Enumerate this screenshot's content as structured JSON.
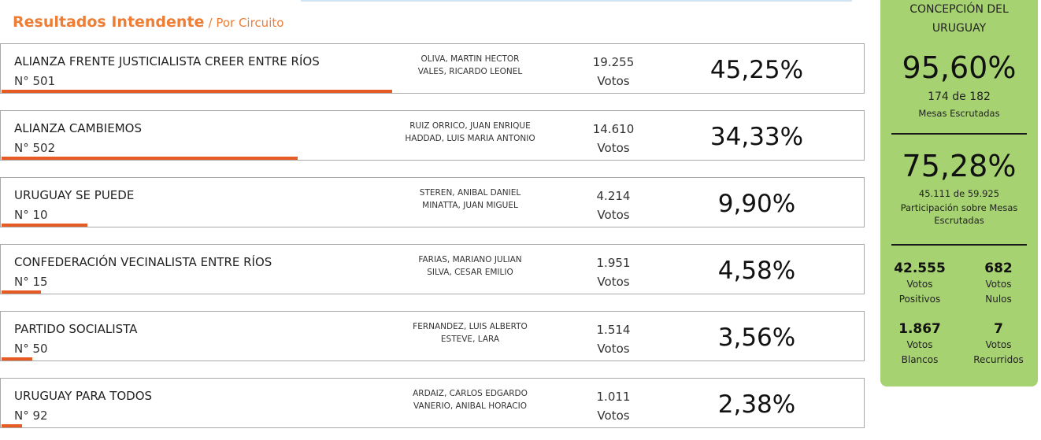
{
  "header": {
    "title": "Resultados Intendente",
    "subtitle": "/ Por Circuito"
  },
  "results": [
    {
      "party": "ALIANZA FRENTE JUSTICIALISTA CREER ENTRE RÍOS",
      "number": "N° 501",
      "candidates": [
        "OLIVA, MARTIN HECTOR",
        "VALES, RICARDO LEONEL"
      ],
      "votes": "19.255",
      "votes_label": "Votos",
      "percent": "45,25%"
    },
    {
      "party": "ALIANZA CAMBIEMOS",
      "number": "N° 502",
      "candidates": [
        "RUIZ ORRICO, JUAN ENRIQUE",
        "HADDAD, LUIS MARIA ANTONIO"
      ],
      "votes": "14.610",
      "votes_label": "Votos",
      "percent": "34,33%"
    },
    {
      "party": "URUGUAY SE PUEDE",
      "number": "N° 10",
      "candidates": [
        "STEREN, ANIBAL DANIEL",
        "MINATTA, JUAN MIGUEL"
      ],
      "votes": "4.214",
      "votes_label": "Votos",
      "percent": "9,90%"
    },
    {
      "party": "CONFEDERACIÓN VECINALISTA ENTRE RÍOS",
      "number": "N° 15",
      "candidates": [
        "FARIAS, MARIANO JULIAN",
        "SILVA, CESAR EMILIO"
      ],
      "votes": "1.951",
      "votes_label": "Votos",
      "percent": "4,58%"
    },
    {
      "party": "PARTIDO SOCIALISTA",
      "number": "N° 50",
      "candidates": [
        "FERNANDEZ, LUIS ALBERTO",
        "ESTEVE, LARA"
      ],
      "votes": "1.514",
      "votes_label": "Votos",
      "percent": "3,56%"
    },
    {
      "party": "URUGUAY PARA TODOS",
      "number": "N° 92",
      "candidates": [
        "ARDAIZ, CARLOS EDGARDO",
        "VANERIO, ANIBAL HORACIO"
      ],
      "votes": "1.011",
      "votes_label": "Votos",
      "percent": "2,38%"
    }
  ],
  "summary": {
    "location": "CONCEPCIÓN DEL URUGUAY",
    "mesas_pct": "95,60%",
    "mesas_count": "174 de 182",
    "mesas_label": "Mesas Escrutadas",
    "participation_pct": "75,28%",
    "participation_count": "45.111 de 59.925",
    "participation_label": "Participación sobre Mesas Escrutadas",
    "positivos": {
      "value": "42.555",
      "label1": "Votos",
      "label2": "Positivos"
    },
    "nulos": {
      "value": "682",
      "label1": "Votos",
      "label2": "Nulos"
    },
    "blancos": {
      "value": "1.867",
      "label1": "Votos",
      "label2": "Blancos"
    },
    "recurridos": {
      "value": "7",
      "label1": "Votos",
      "label2": "Recurridos"
    }
  },
  "colors": {
    "accent": "#ee7d35",
    "bar": "#e65a24",
    "panel": "#a6d271"
  }
}
